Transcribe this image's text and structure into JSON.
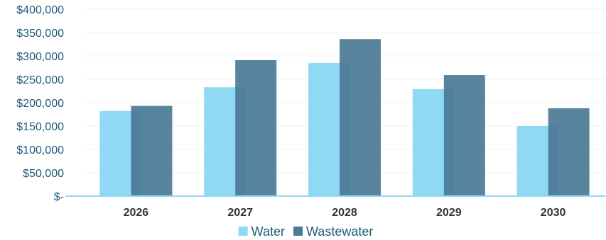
{
  "chart_data": {
    "type": "bar",
    "title": "",
    "xlabel": "",
    "ylabel": "",
    "categories": [
      "2026",
      "2027",
      "2028",
      "2029",
      "2030"
    ],
    "series": [
      {
        "name": "Water",
        "values": [
          182000,
          233000,
          285000,
          229000,
          150000
        ],
        "color": "#8fd9f5"
      },
      {
        "name": "Wastewater",
        "values": [
          193000,
          291000,
          336000,
          259000,
          188000
        ],
        "color": "#4a7a96"
      }
    ],
    "ylim": [
      0,
      400000
    ],
    "yticks": [
      0,
      50000,
      100000,
      150000,
      200000,
      250000,
      300000,
      350000,
      400000
    ],
    "ytick_labels": [
      "$-",
      "$50,000",
      "$100,000",
      "$150,000",
      "$200,000",
      "$250,000",
      "$300,000",
      "$350,000",
      "$400,000"
    ],
    "grid": true,
    "legend_position": "bottom",
    "axis_color": "#8fd9f5",
    "gridline_color": "#f2f2f2"
  }
}
